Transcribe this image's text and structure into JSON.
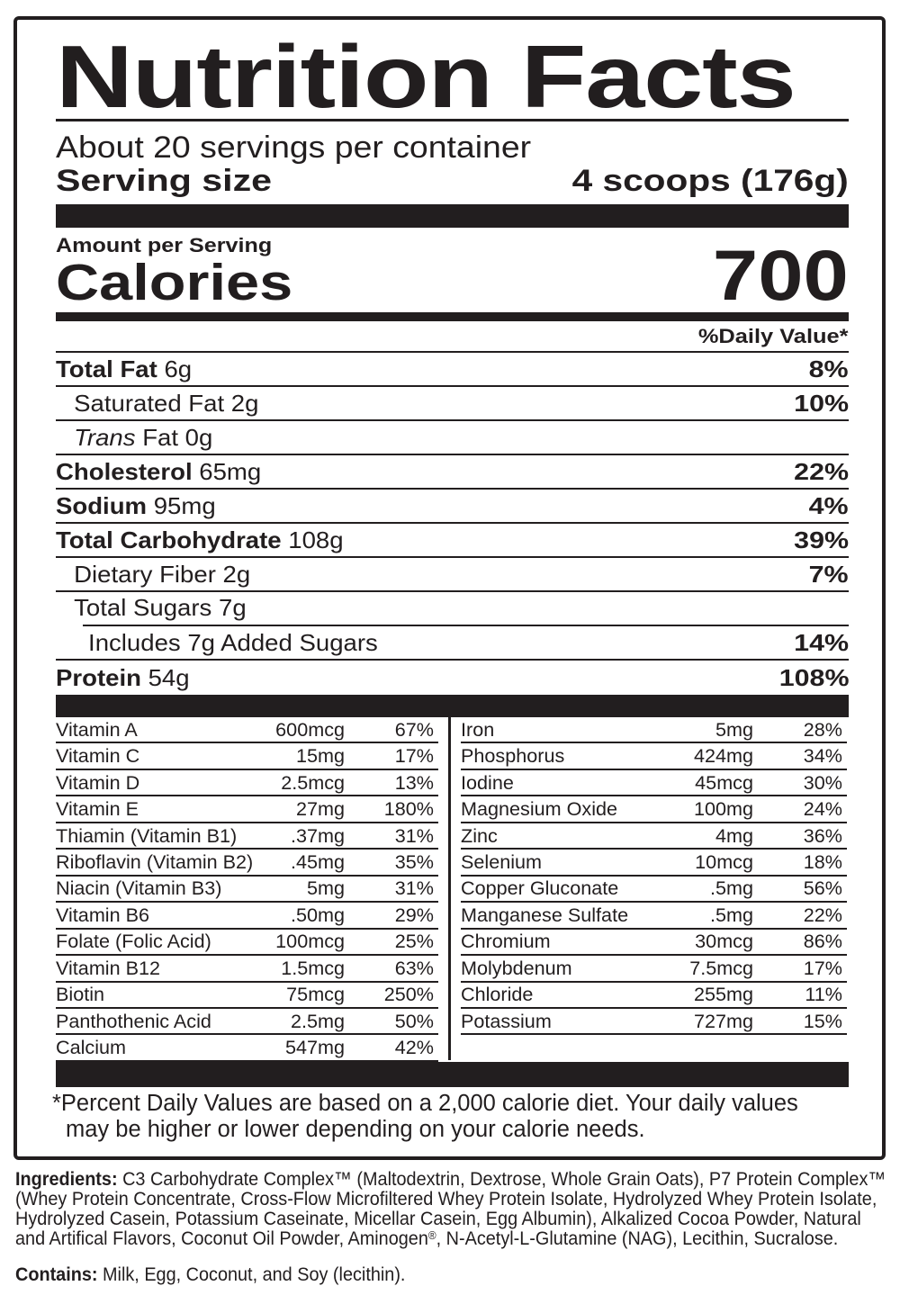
{
  "label": {
    "title": "Nutrition Facts",
    "servings_per_container": "About 20 servings per container",
    "serving_size_label": "Serving size",
    "serving_size_value": "4 scoops (176g)",
    "amount_per_serving": "Amount per Serving",
    "calories_label": "Calories",
    "calories_value": "700",
    "daily_value_header": "%Daily Value*",
    "footnote_lines": [
      "*Percent Daily Values are based on a 2,000 calorie diet. Your daily values",
      "may be higher or lower depending on your calorie needs."
    ]
  },
  "nutrients": [
    {
      "parts": [
        {
          "t": "Total Fat",
          "b": true
        },
        {
          "t": " 6g"
        }
      ],
      "dv": "8%",
      "indent": 0
    },
    {
      "parts": [
        {
          "t": "Saturated Fat 2g"
        }
      ],
      "dv": "10%",
      "indent": 1
    },
    {
      "parts": [
        {
          "t": "Trans",
          "i": true
        },
        {
          "t": " Fat 0g"
        }
      ],
      "dv": "",
      "indent": 1
    },
    {
      "parts": [
        {
          "t": "Cholesterol",
          "b": true
        },
        {
          "t": " 65mg"
        }
      ],
      "dv": "22%",
      "indent": 0
    },
    {
      "parts": [
        {
          "t": "Sodium",
          "b": true
        },
        {
          "t": " 95mg"
        }
      ],
      "dv": "4%",
      "indent": 0
    },
    {
      "parts": [
        {
          "t": "Total Carbohydrate",
          "b": true
        },
        {
          "t": " 108g"
        }
      ],
      "dv": "39%",
      "indent": 0
    },
    {
      "parts": [
        {
          "t": "Dietary Fiber 2g"
        }
      ],
      "dv": "7%",
      "indent": 1
    },
    {
      "parts": [
        {
          "t": "Total Sugars 7g"
        }
      ],
      "dv": "",
      "indent": 1,
      "rule_indent": 30
    },
    {
      "parts": [
        {
          "t": "Includes 7g Added Sugars"
        }
      ],
      "dv": "14%",
      "indent": 2
    },
    {
      "parts": [
        {
          "t": "Protein",
          "b": true
        },
        {
          "t": " 54g"
        }
      ],
      "dv": "108%",
      "indent": 0,
      "no_rule": true
    }
  ],
  "micronutrients": {
    "left": [
      {
        "name": "Vitamin A",
        "amount": "600mcg",
        "dv": "67%"
      },
      {
        "name": "Vitamin C",
        "amount": "15mg",
        "dv": "17%"
      },
      {
        "name": "Vitamin D",
        "amount": "2.5mcg",
        "dv": "13%"
      },
      {
        "name": "Vitamin E",
        "amount": "27mg",
        "dv": "180%"
      },
      {
        "name": "Thiamin (Vitamin B1)",
        "amount": ".37mg",
        "dv": "31%"
      },
      {
        "name": "Riboflavin (Vitamin B2)",
        "amount": ".45mg",
        "dv": "35%"
      },
      {
        "name": "Niacin (Vitamin B3)",
        "amount": "5mg",
        "dv": "31%"
      },
      {
        "name": "Vitamin B6",
        "amount": ".50mg",
        "dv": "29%"
      },
      {
        "name": "Folate (Folic Acid)",
        "amount": "100mcg",
        "dv": "25%"
      },
      {
        "name": "Vitamin B12",
        "amount": "1.5mcg",
        "dv": "63%"
      },
      {
        "name": "Biotin",
        "amount": "75mcg",
        "dv": "250%"
      },
      {
        "name": "Panthothenic Acid",
        "amount": "2.5mg",
        "dv": "50%"
      },
      {
        "name": "Calcium",
        "amount": "547mg",
        "dv": "42%"
      }
    ],
    "right": [
      {
        "name": "Iron",
        "amount": "5mg",
        "dv": "28%"
      },
      {
        "name": "Phosphorus",
        "amount": "424mg",
        "dv": "34%"
      },
      {
        "name": "Iodine",
        "amount": "45mcg",
        "dv": "30%"
      },
      {
        "name": "Magnesium Oxide",
        "amount": "100mg",
        "dv": "24%"
      },
      {
        "name": "Zinc",
        "amount": "4mg",
        "dv": "36%"
      },
      {
        "name": "Selenium",
        "amount": "10mcg",
        "dv": "18%"
      },
      {
        "name": "Copper Gluconate",
        "amount": ".5mg",
        "dv": "56%"
      },
      {
        "name": "Manganese Sulfate",
        "amount": ".5mg",
        "dv": "22%"
      },
      {
        "name": "Chromium",
        "amount": "30mcg",
        "dv": "86%"
      },
      {
        "name": "Molybdenum",
        "amount": "7.5mcg",
        "dv": "17%"
      },
      {
        "name": "Chloride",
        "amount": "255mg",
        "dv": "11%"
      },
      {
        "name": "Potassium",
        "amount": "727mg",
        "dv": "15%"
      }
    ]
  },
  "ingredients": {
    "label": "Ingredients:",
    "lines": [
      "C3 Carbohydrate Complex™ (Maltodextrin, Dextrose, Whole Grain Oats), P7 Protein Complex™",
      "(Whey Protein Concentrate, Cross-Flow Microfiltered Whey Protein Isolate, Hydrolyzed Whey Protein Isolate,",
      "Hydrolyzed Casein, Potassium Caseinate, Micellar Casein, Egg Albumin), Alkalized Cocoa Powder, Natural",
      "and Artifical Flavors, Coconut Oil Powder, Aminogen®, N-Acetyl-L-Glutamine (NAG), Lecithin, Sucralose."
    ]
  },
  "contains": {
    "label": "Contains:",
    "text": "Milk, Egg, Coconut, and Soy (lecithin)."
  }
}
